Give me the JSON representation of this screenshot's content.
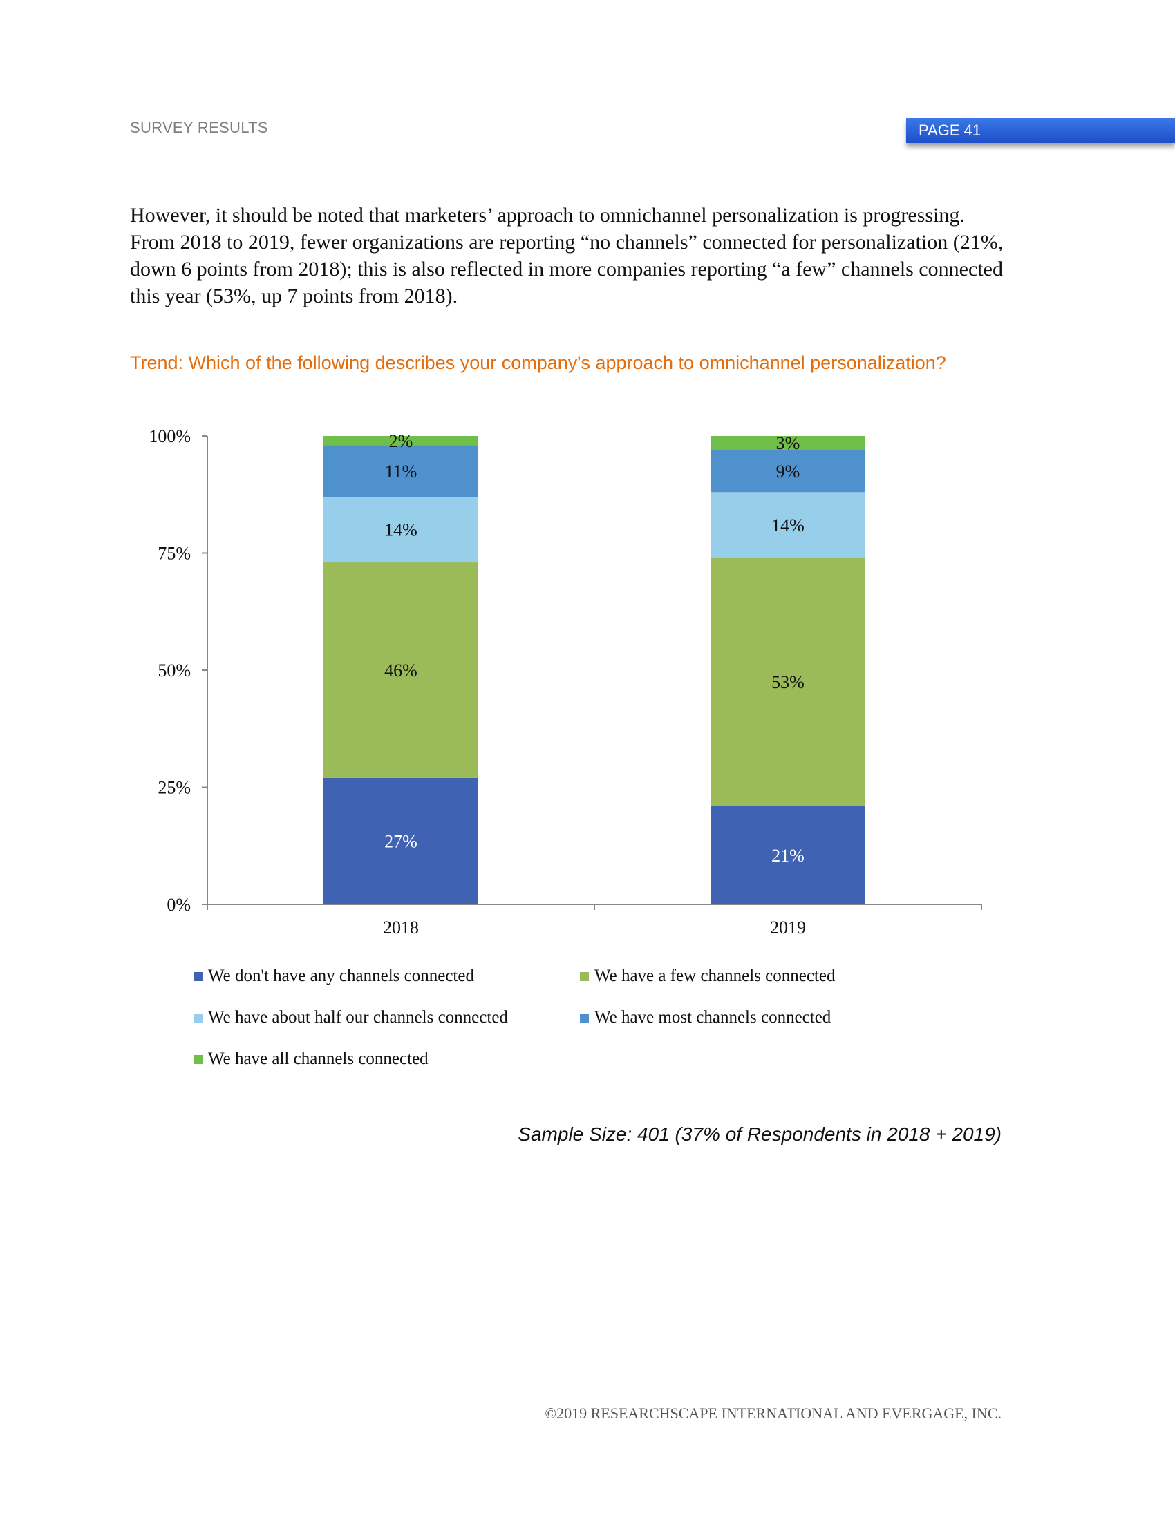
{
  "header": {
    "section": "SURVEY RESULTS",
    "page": "PAGE 41"
  },
  "body": {
    "paragraph": "However, it should be noted that marketers’ approach to omnichannel personalization is progressing. From 2018 to 2019, fewer organizations are reporting “no channels” connected for personalization (21%, down 6 points from 2018); this is also reflected in more companies reporting “a few” channels connected this year (53%, up 7 points from 2018).",
    "question": "Trend: Which of the following describes your company's approach to omnichannel personalization?"
  },
  "chart_data": {
    "type": "bar",
    "stacked": true,
    "categories": [
      "2018",
      "2019"
    ],
    "ylim": [
      0,
      100
    ],
    "yticks": [
      "0%",
      "25%",
      "50%",
      "75%",
      "100%"
    ],
    "legend_position": "bottom",
    "series": [
      {
        "name": "We don't have any channels connected",
        "values": [
          27,
          21
        ],
        "labels": [
          "27%",
          "21%"
        ],
        "color": "#3f62b3",
        "label_color": "#ffffff"
      },
      {
        "name": "We have a few channels connected",
        "values": [
          46,
          53
        ],
        "labels": [
          "46%",
          "53%"
        ],
        "color": "#9bbb59",
        "label_color": "#111111"
      },
      {
        "name": "We have about half our channels connected",
        "values": [
          14,
          14
        ],
        "labels": [
          "14%",
          "14%"
        ],
        "color": "#97cfea",
        "label_color": "#111111"
      },
      {
        "name": "We have most channels connected",
        "values": [
          11,
          9
        ],
        "labels": [
          "11%",
          "9%"
        ],
        "color": "#4f91cd",
        "label_color": "#111111"
      },
      {
        "name": "We have all channels connected",
        "values": [
          2,
          3
        ],
        "labels": [
          "2%",
          "3%"
        ],
        "color": "#70bf4b",
        "label_color": "#111111"
      }
    ]
  },
  "sample_size": "Sample Size:  401 (37% of Respondents in 2018 + 2019)",
  "footer": "©2019  RESEARCHSCAPE INTERNATIONAL AND EVERGAGE, INC."
}
